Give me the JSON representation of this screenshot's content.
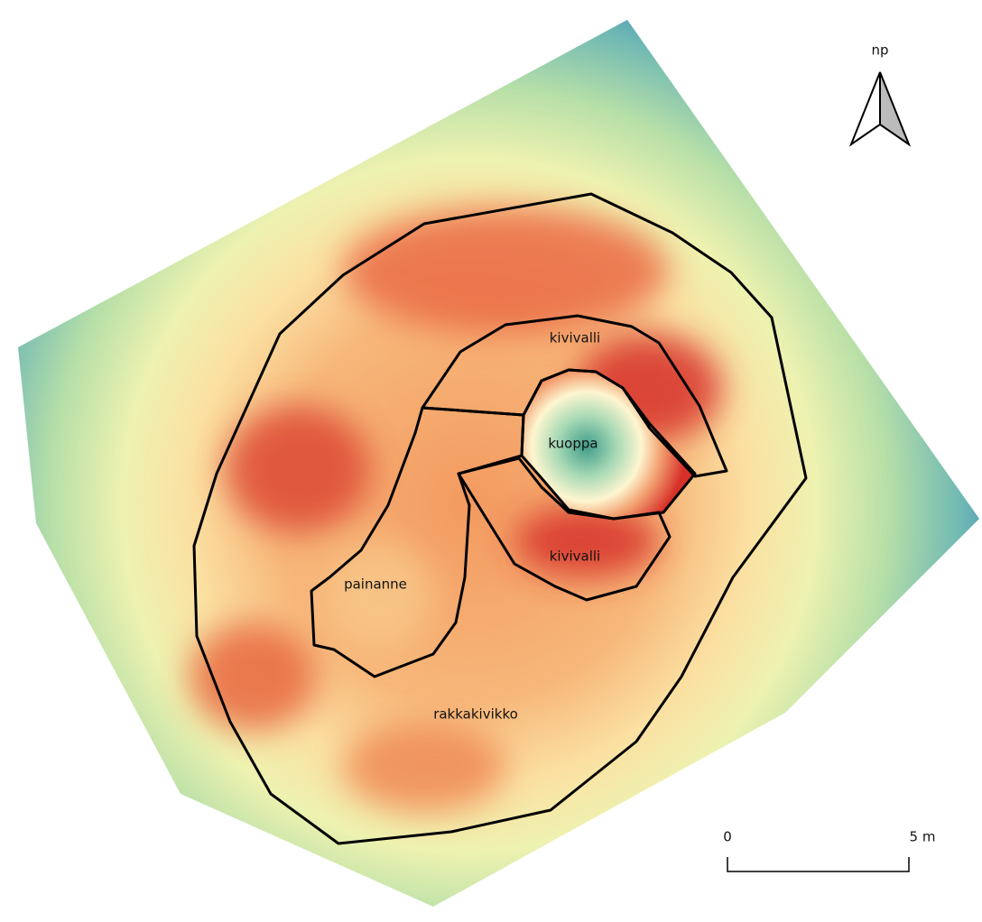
{
  "north_arrow": {
    "label": "np"
  },
  "labels": [
    "kivivalli",
    "kuoppa",
    "kivivalli",
    "painanne",
    "rakkakivikko"
  ],
  "scale_bar": {
    "start": "0",
    "end": "5 m"
  }
}
